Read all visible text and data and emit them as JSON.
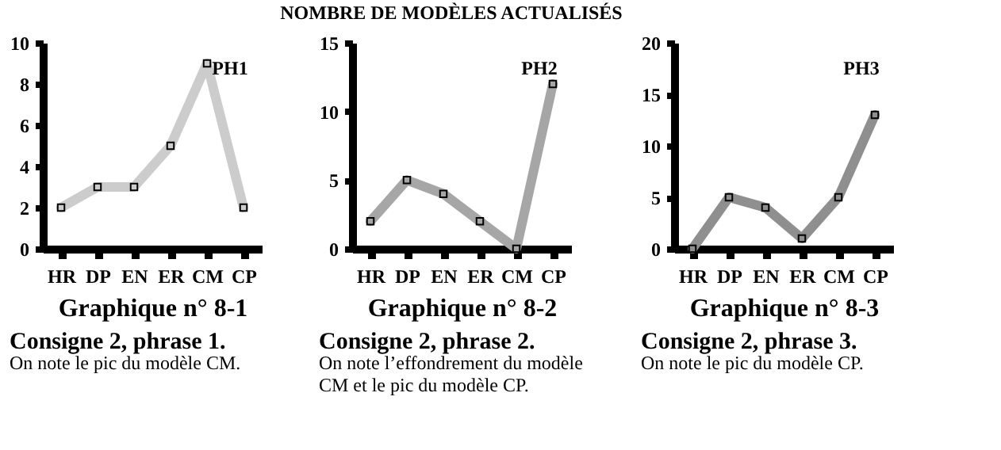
{
  "chart_data": [
    {
      "type": "line",
      "categories": [
        "HR",
        "DP",
        "EN",
        "ER",
        "CM",
        "CP"
      ],
      "xlabel": "Graphique n° 8-1",
      "series": [
        {
          "color": "#cccccc",
          "values": [
            2,
            3,
            3,
            5,
            9,
            2
          ]
        }
      ],
      "ylim": [
        0,
        10
      ],
      "yticks": [
        0,
        2,
        4,
        6,
        8,
        10
      ],
      "marker": "square",
      "line_style": "solid",
      "grid": false,
      "annotations": [
        "PH1",
        "Consigne 2, phrase 1.",
        "On note le pic du modèle CM."
      ]
    },
    {
      "type": "line",
      "title": "NOMBRE DE MODÈLES ACTUALISÉS",
      "categories": [
        "HR",
        "DP",
        "EN",
        "ER",
        "CM",
        "CP"
      ],
      "xlabel": "Graphique n° 8-2",
      "series": [
        {
          "color": "#a6a6a6",
          "values": [
            2,
            5,
            4,
            2,
            0,
            12
          ]
        }
      ],
      "ylim": [
        0,
        15
      ],
      "yticks": [
        0,
        5,
        10,
        15
      ],
      "marker": "square",
      "line_style": "solid",
      "grid": false,
      "annotations": [
        "PH2",
        "Consigne 2, phrase 2.",
        "On note l’effondrement du modèle CM et le pic du modèle CP."
      ]
    },
    {
      "type": "line",
      "categories": [
        "HR",
        "DP",
        "EN",
        "ER",
        "CM",
        "CP"
      ],
      "xlabel": "Graphique n° 8-3",
      "series": [
        {
          "color": "#8f8f8f",
          "values": [
            0,
            5,
            4,
            1,
            5,
            13
          ]
        }
      ],
      "ylim": [
        0,
        20
      ],
      "yticks": [
        0,
        5,
        10,
        15,
        20
      ],
      "marker": "square",
      "line_style": "solid",
      "grid": false,
      "annotations": [
        "PH3",
        "Consigne 2, phrase 3.",
        "On note le pic du modèle CP."
      ]
    }
  ]
}
